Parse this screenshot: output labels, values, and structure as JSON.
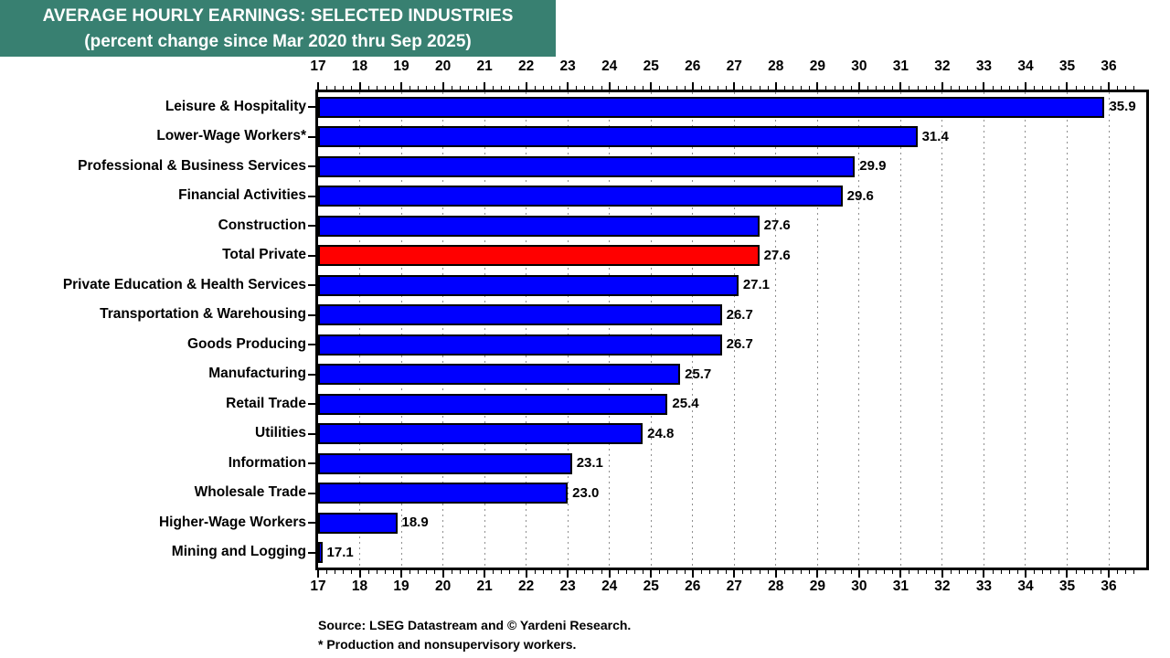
{
  "title": {
    "line1": "AVERAGE HOURLY EARNINGS: SELECTED INDUSTRIES",
    "line2": "(percent change since Mar 2020 thru Sep 2025)",
    "bg_color": "#388071",
    "text_color": "#ffffff"
  },
  "chart_data": {
    "type": "bar",
    "orientation": "horizontal",
    "categories": [
      "Leisure & Hospitality",
      "Lower-Wage Workers*",
      "Professional & Business Services",
      "Financial Activities",
      "Construction",
      "Total Private",
      "Private Education & Health Services",
      "Transportation & Warehousing",
      "Goods Producing",
      "Manufacturing",
      "Retail Trade",
      "Utilities",
      "Information",
      "Wholesale Trade",
      "Higher-Wage Workers",
      "Mining and Logging"
    ],
    "values": [
      35.9,
      31.4,
      29.9,
      29.6,
      27.6,
      27.6,
      27.1,
      26.7,
      26.7,
      25.7,
      25.4,
      24.8,
      23.1,
      23.0,
      18.9,
      17.1
    ],
    "value_labels": [
      "35.9",
      "31.4",
      "29.9",
      "29.6",
      "27.6",
      "27.6",
      "27.1",
      "26.7",
      "26.7",
      "25.7",
      "25.4",
      "24.8",
      "23.1",
      "23.0",
      "18.9",
      "17.1"
    ],
    "bar_colors": [
      "#0000ff",
      "#0000ff",
      "#0000ff",
      "#0000ff",
      "#0000ff",
      "#ff0000",
      "#0000ff",
      "#0000ff",
      "#0000ff",
      "#0000ff",
      "#0000ff",
      "#0000ff",
      "#0000ff",
      "#0000ff",
      "#0000ff",
      "#0000ff"
    ],
    "highlight_category": "Total Private",
    "highlight_color": "#ff0000",
    "default_bar_color": "#0000ff",
    "axis": {
      "min": 17,
      "max_labeled": 36,
      "max": 36.9,
      "tick_step": 1,
      "minor_tick_step": 0.2,
      "tick_labels": [
        "17",
        "18",
        "19",
        "20",
        "21",
        "22",
        "23",
        "24",
        "25",
        "26",
        "27",
        "28",
        "29",
        "30",
        "31",
        "32",
        "33",
        "34",
        "35",
        "36"
      ],
      "grid": "dotted-vertical",
      "grid_color": "#8f8f8f",
      "axes_shown": [
        "top",
        "bottom"
      ]
    }
  },
  "footer": {
    "source": "Source: LSEG Datastream and © Yardeni Research.",
    "footnote": "* Production and nonsupervisory workers."
  }
}
